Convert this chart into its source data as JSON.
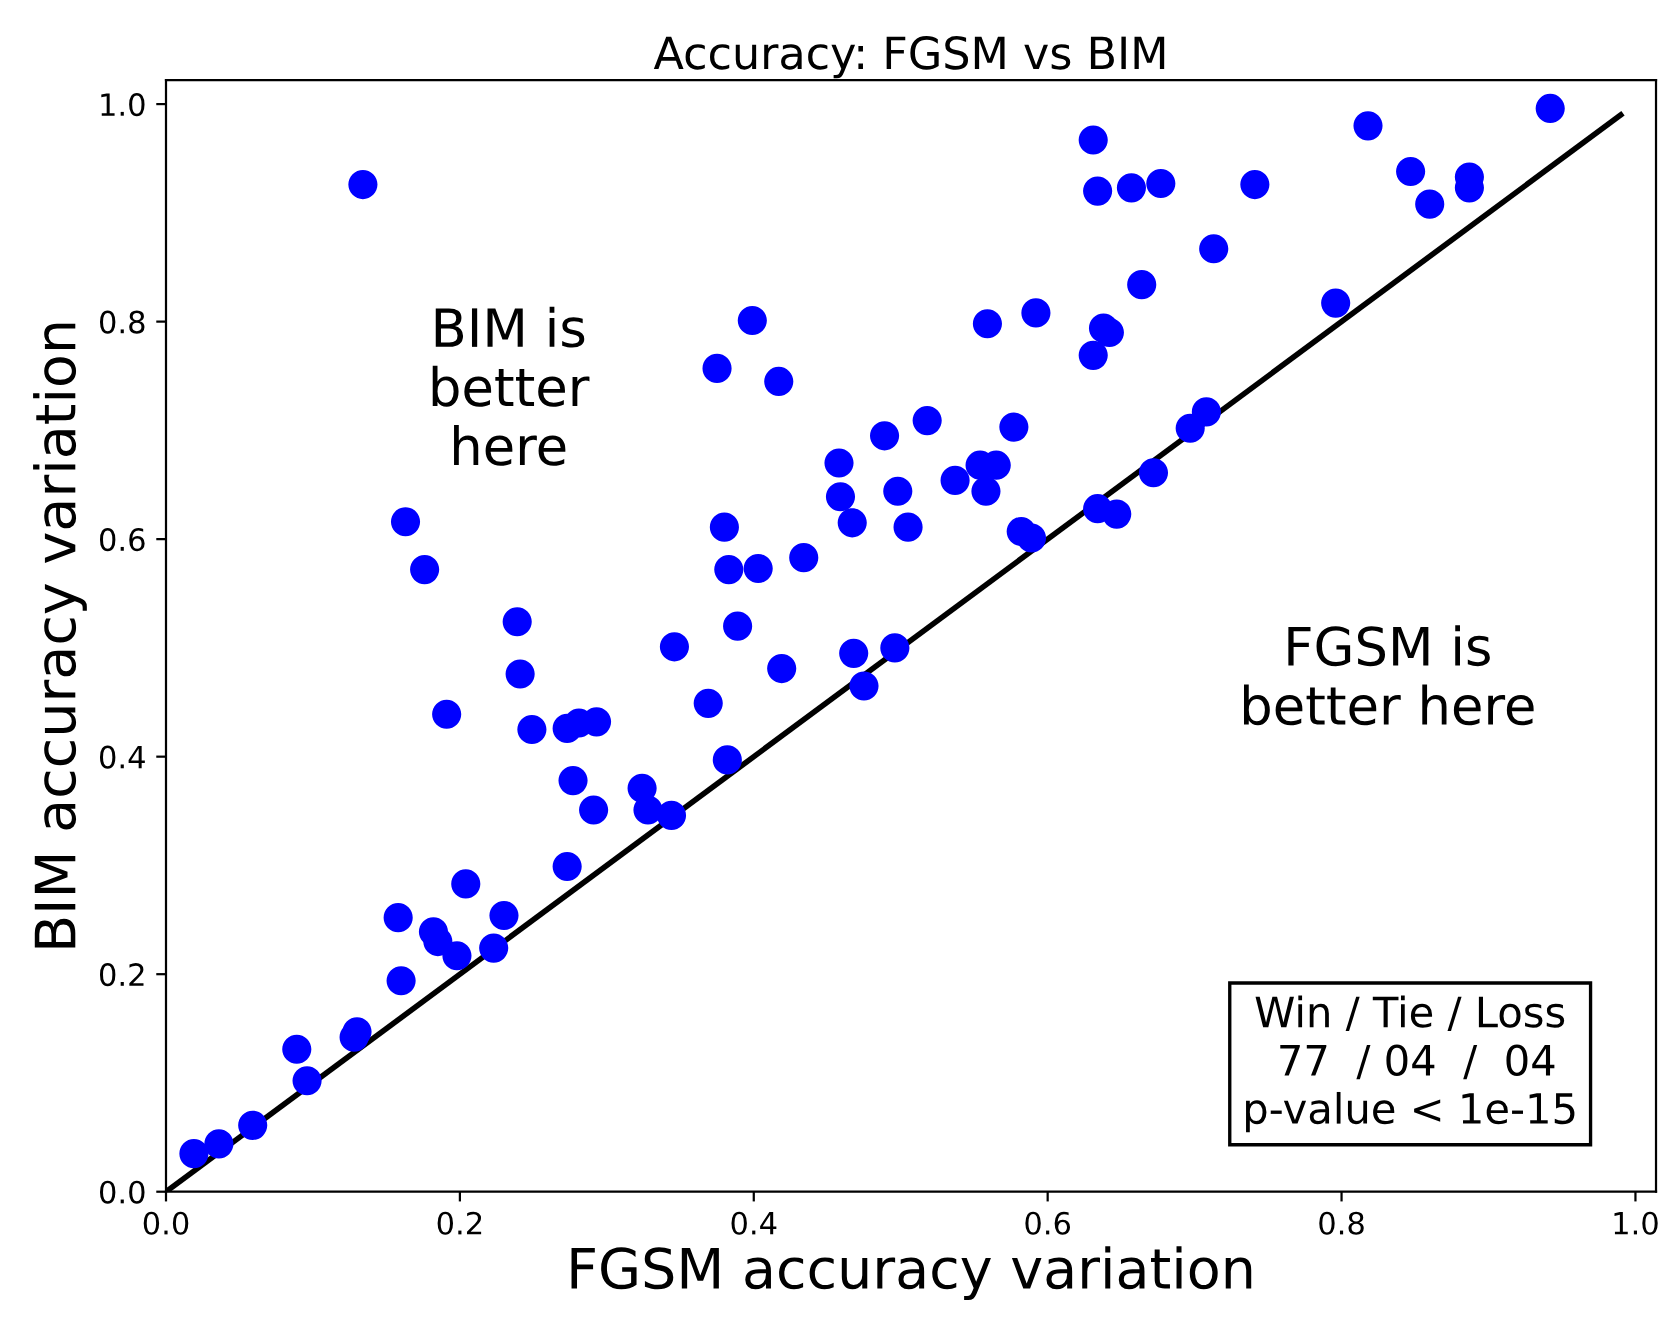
{
  "chart_data": {
    "type": "scatter",
    "title": "Accuracy: FGSM vs BIM",
    "xlabel": "FGSM accuracy variation",
    "ylabel": "BIM accuracy variation",
    "series": [
      {
        "color": "#0000ff",
        "marker": "circle",
        "x": [
          0.942,
          0.818,
          0.631,
          0.634,
          0.657,
          0.677,
          0.741,
          0.847,
          0.887,
          0.887,
          0.86,
          0.713,
          0.664,
          0.559,
          0.592,
          0.631,
          0.638,
          0.642,
          0.796,
          0.489,
          0.518,
          0.577,
          0.537,
          0.554,
          0.565,
          0.558,
          0.498,
          0.505,
          0.582,
          0.589,
          0.634,
          0.647,
          0.672,
          0.697,
          0.708,
          0.496,
          0.134,
          0.399,
          0.375,
          0.417,
          0.458,
          0.459,
          0.467,
          0.163,
          0.176,
          0.38,
          0.383,
          0.403,
          0.434,
          0.239,
          0.389,
          0.346,
          0.468,
          0.191,
          0.241,
          0.249,
          0.273,
          0.281,
          0.293,
          0.419,
          0.369,
          0.475,
          0.382,
          0.277,
          0.291,
          0.324,
          0.328,
          0.344,
          0.273,
          0.204,
          0.158,
          0.182,
          0.185,
          0.198,
          0.23,
          0.223,
          0.16,
          0.089,
          0.096,
          0.13,
          0.128,
          0.059,
          0.036,
          0.019
        ],
        "values": [
          0.996,
          0.98,
          0.967,
          0.92,
          0.923,
          0.927,
          0.926,
          0.938,
          0.933,
          0.923,
          0.908,
          0.867,
          0.834,
          0.798,
          0.808,
          0.769,
          0.794,
          0.79,
          0.817,
          0.695,
          0.709,
          0.703,
          0.654,
          0.668,
          0.668,
          0.644,
          0.644,
          0.611,
          0.607,
          0.601,
          0.628,
          0.623,
          0.661,
          0.702,
          0.717,
          0.5,
          0.926,
          0.801,
          0.757,
          0.745,
          0.67,
          0.639,
          0.615,
          0.616,
          0.572,
          0.611,
          0.572,
          0.573,
          0.583,
          0.524,
          0.52,
          0.501,
          0.495,
          0.439,
          0.476,
          0.425,
          0.426,
          0.431,
          0.432,
          0.481,
          0.449,
          0.465,
          0.397,
          0.378,
          0.351,
          0.371,
          0.351,
          0.346,
          0.299,
          0.283,
          0.252,
          0.239,
          0.23,
          0.217,
          0.254,
          0.224,
          0.194,
          0.131,
          0.102,
          0.147,
          0.142,
          0.061,
          0.044,
          0.035
        ]
      },
      {
        "type": "line",
        "color": "#000000",
        "line_style": "solid",
        "x": [
          0,
          0.99
        ],
        "values": [
          0,
          0.99
        ]
      }
    ],
    "xlim": [
      0,
      1.014
    ],
    "ylim": [
      0,
      1.022
    ],
    "xticks": [
      {
        "value": 0,
        "label": "0.0"
      },
      0.2,
      0.4,
      0.6,
      0.8,
      {
        "value": 1,
        "label": "1.0"
      }
    ],
    "yticks": [
      {
        "value": 0,
        "label": "0.0"
      },
      0.2,
      0.4,
      0.6,
      0.8,
      {
        "value": 1,
        "label": "1.0"
      }
    ],
    "grid": false,
    "legend": false,
    "annotations": [
      "BIM is\nbetter\nhere",
      "FGSM is\nbetter here",
      "Win / Tie / Loss\n 77  / 04  /  04\np-value < 1e-15"
    ]
  }
}
